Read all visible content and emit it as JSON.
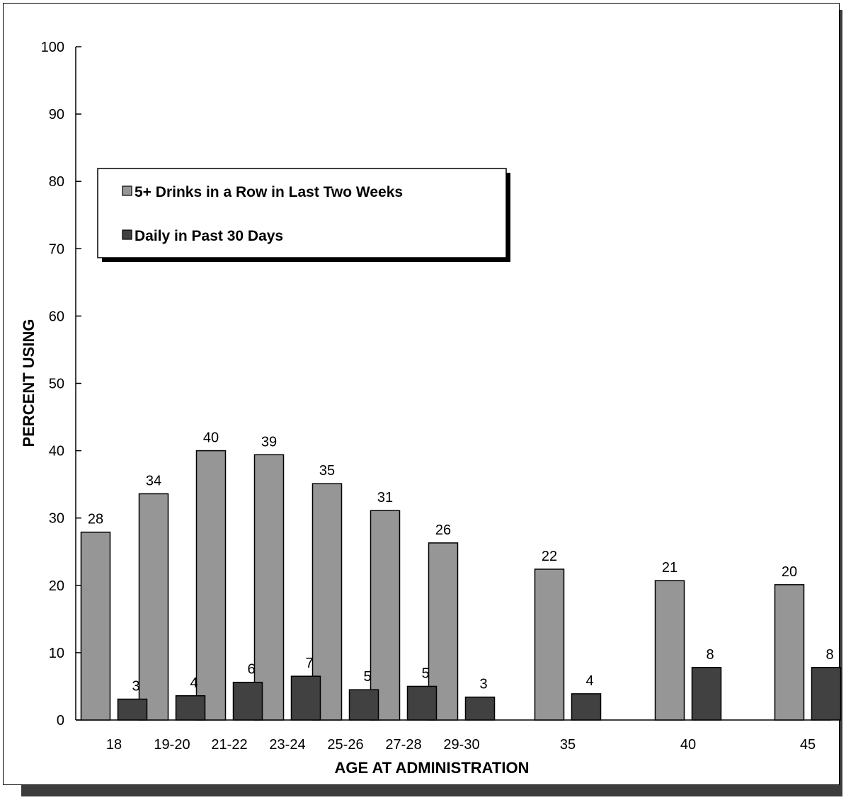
{
  "chart_data": {
    "type": "bar",
    "xlabel": "AGE AT ADMINISTRATION",
    "ylabel": "PERCENT USING",
    "ylim": [
      0,
      100
    ],
    "yticks": [
      0,
      10,
      20,
      30,
      40,
      50,
      60,
      70,
      80,
      90,
      100
    ],
    "grid": false,
    "legend_position": "upper-left",
    "categories": [
      "18",
      "19-20",
      "21-22",
      "23-24",
      "25-26",
      "27-28",
      "29-30",
      "35",
      "40",
      "45"
    ],
    "series": [
      {
        "name": "5+ Drinks in a Row in Last Two Weeks",
        "color": "#969696",
        "values": [
          27.9,
          33.6,
          40.0,
          39.4,
          35.1,
          31.1,
          26.3,
          22.4,
          20.7,
          20.1
        ],
        "labels": [
          "28",
          "34",
          "40",
          "39",
          "35",
          "31",
          "26",
          "22",
          "21",
          "20"
        ]
      },
      {
        "name": "Daily in Past 30 Days",
        "color": "#414141",
        "values": [
          3.1,
          3.6,
          5.6,
          6.5,
          4.5,
          5.0,
          3.4,
          3.9,
          7.8,
          7.8
        ],
        "labels": [
          "3",
          "4",
          "6",
          "7",
          "5",
          "5",
          "3",
          "4",
          "8",
          "8"
        ]
      }
    ]
  }
}
